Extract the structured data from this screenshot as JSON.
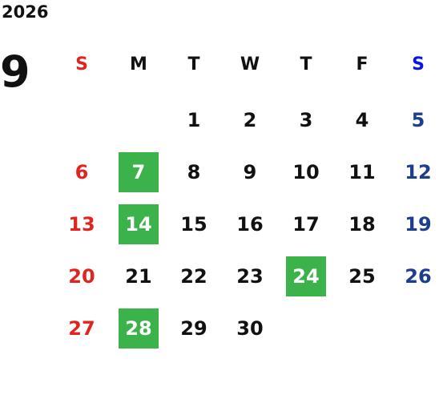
{
  "calendar": {
    "year": "2026",
    "month": "9",
    "weekdays": [
      "S",
      "M",
      "T",
      "W",
      "T",
      "F",
      "S"
    ],
    "weeks": [
      [
        null,
        null,
        "1",
        "2",
        "3",
        "4",
        "5"
      ],
      [
        "6",
        {
          "label": "7",
          "highlight": true
        },
        "8",
        "9",
        "10",
        "11",
        "12"
      ],
      [
        "13",
        {
          "label": "14",
          "highlight": true
        },
        "15",
        "16",
        "17",
        "18",
        "19"
      ],
      [
        "20",
        "21",
        "22",
        "23",
        {
          "label": "24",
          "highlight": true
        },
        "25",
        "26"
      ],
      [
        "27",
        {
          "label": "28",
          "highlight": true
        },
        "29",
        "30",
        null,
        null,
        null
      ]
    ],
    "colors": {
      "sunday": "#e0251f",
      "saturday_header": "#0a14e6",
      "saturday": "#1d3e8e",
      "weekday": "#111111",
      "highlight": "#3bb34a",
      "highlight_text": "#ffffff"
    }
  }
}
